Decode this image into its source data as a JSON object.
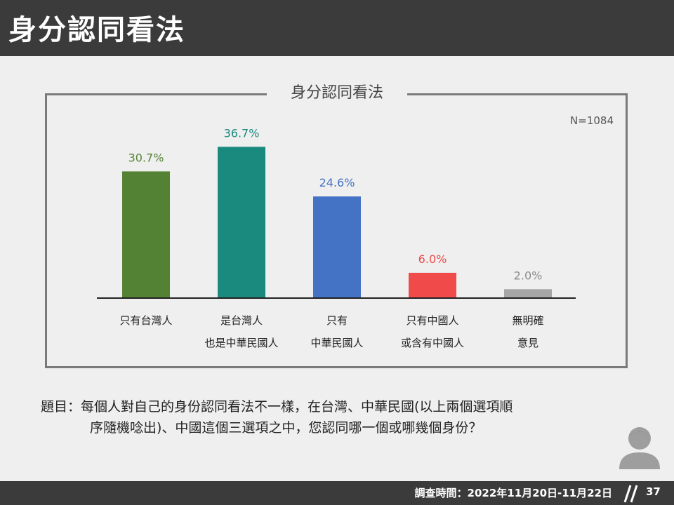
{
  "header": {
    "title": "身分認同看法"
  },
  "panel": {
    "title": "身分認同看法",
    "sample_size": "N=1084"
  },
  "chart_data": {
    "type": "bar",
    "title": "身分認同看法",
    "categories": [
      [
        "只有台灣人"
      ],
      [
        "是台灣人",
        "也是中華民國人"
      ],
      [
        "只有",
        "中華民國人"
      ],
      [
        "只有中國人",
        "或含有中國人"
      ],
      [
        "無明確",
        "意見"
      ]
    ],
    "values": [
      30.7,
      36.7,
      24.6,
      6.0,
      2.0
    ],
    "value_labels": [
      "30.7%",
      "36.7%",
      "24.6%",
      "6.0%",
      "2.0%"
    ],
    "colors": [
      "#548235",
      "#1a8a7e",
      "#4472c4",
      "#f04a4a",
      "#a6a6a6"
    ],
    "label_colors": [
      "#548235",
      "#1a8a7e",
      "#4472c4",
      "#f04a4a",
      "#8c8c8c"
    ],
    "ylim": [
      0,
      40
    ],
    "grid": false,
    "xlabel": "",
    "ylabel": ""
  },
  "question": {
    "line1": "題目：每個人對自己的身份認同看法不一樣，在台灣、中華民國(以上兩個選項順",
    "line2": "序隨機唸出)、中國這個三選項之中，您認同哪一個或哪幾個身份？"
  },
  "footer": {
    "date": "調查時間：2022年11月20日-11月22日",
    "page": "37"
  },
  "icons": {
    "person": "person-icon",
    "separator": "double-slash"
  }
}
